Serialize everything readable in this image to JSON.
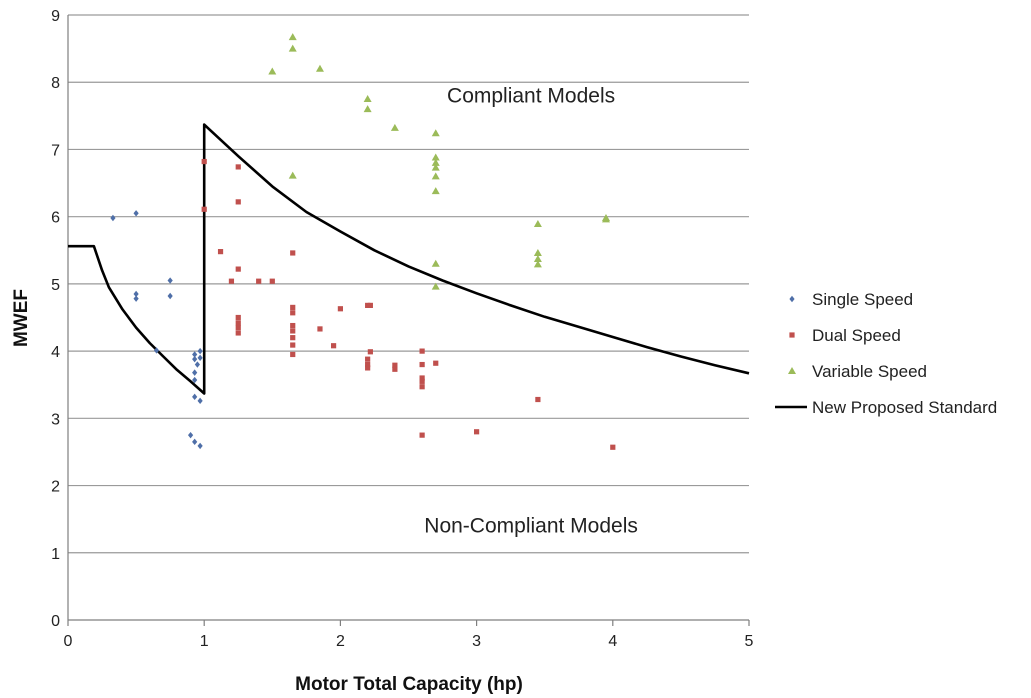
{
  "chart_data": {
    "type": "scatter",
    "title": "",
    "xlabel": "Motor Total Capacity (hp)",
    "ylabel": "MWEF",
    "xlim": [
      0,
      5
    ],
    "ylim": [
      0,
      9
    ],
    "xticks": [
      "0",
      "1",
      "2",
      "3",
      "4",
      "5"
    ],
    "yticks": [
      "0",
      "1",
      "2",
      "3",
      "4",
      "5",
      "6",
      "7",
      "8",
      "9"
    ],
    "grid": "horizontal",
    "legend_position": "right",
    "annotations": [
      {
        "text": "Compliant Models",
        "x": 3.4,
        "y": 7.7
      },
      {
        "text": "Non-Compliant Models",
        "x": 3.4,
        "y": 1.3
      }
    ],
    "series": [
      {
        "name": "Single Speed",
        "marker": "diamond",
        "color": "#4F6FA8",
        "points": [
          [
            0.33,
            5.98
          ],
          [
            0.5,
            6.05
          ],
          [
            0.5,
            4.85
          ],
          [
            0.5,
            4.78
          ],
          [
            0.75,
            5.05
          ],
          [
            0.75,
            4.82
          ],
          [
            0.65,
            4.01
          ],
          [
            0.93,
            3.95
          ],
          [
            0.93,
            3.88
          ],
          [
            0.97,
            4.0
          ],
          [
            0.97,
            3.9
          ],
          [
            0.95,
            3.8
          ],
          [
            0.93,
            3.68
          ],
          [
            0.93,
            3.57
          ],
          [
            0.93,
            3.32
          ],
          [
            0.97,
            3.26
          ],
          [
            0.9,
            2.75
          ],
          [
            0.93,
            2.65
          ],
          [
            0.97,
            2.59
          ]
        ]
      },
      {
        "name": "Dual Speed",
        "marker": "square",
        "color": "#C0504D",
        "points": [
          [
            1.0,
            6.82
          ],
          [
            1.0,
            6.11
          ],
          [
            1.25,
            6.74
          ],
          [
            1.25,
            6.22
          ],
          [
            1.12,
            5.48
          ],
          [
            1.25,
            5.22
          ],
          [
            1.2,
            5.04
          ],
          [
            1.4,
            5.04
          ],
          [
            1.5,
            5.04
          ],
          [
            1.25,
            4.5
          ],
          [
            1.25,
            4.42
          ],
          [
            1.25,
            4.35
          ],
          [
            1.25,
            4.27
          ],
          [
            1.65,
            5.46
          ],
          [
            1.65,
            4.65
          ],
          [
            1.65,
            4.57
          ],
          [
            1.65,
            4.38
          ],
          [
            1.65,
            4.3
          ],
          [
            1.65,
            4.2
          ],
          [
            1.65,
            4.09
          ],
          [
            1.65,
            3.95
          ],
          [
            1.85,
            4.33
          ],
          [
            1.95,
            4.08
          ],
          [
            2.0,
            4.63
          ],
          [
            2.2,
            4.68
          ],
          [
            2.22,
            4.68
          ],
          [
            2.22,
            3.99
          ],
          [
            2.2,
            3.88
          ],
          [
            2.2,
            3.8
          ],
          [
            2.2,
            3.75
          ],
          [
            2.4,
            3.79
          ],
          [
            2.4,
            3.73
          ],
          [
            2.6,
            4.0
          ],
          [
            2.6,
            3.8
          ],
          [
            2.6,
            3.6
          ],
          [
            2.6,
            3.55
          ],
          [
            2.6,
            3.47
          ],
          [
            2.7,
            3.82
          ],
          [
            2.6,
            2.75
          ],
          [
            3.0,
            2.8
          ],
          [
            3.45,
            3.28
          ],
          [
            4.0,
            2.57
          ]
        ]
      },
      {
        "name": "Variable Speed",
        "marker": "triangle",
        "color": "#9BBB59",
        "points": [
          [
            1.65,
            8.67
          ],
          [
            1.65,
            8.5
          ],
          [
            1.5,
            8.16
          ],
          [
            1.85,
            8.2
          ],
          [
            2.2,
            7.75
          ],
          [
            2.2,
            7.6
          ],
          [
            2.4,
            7.32
          ],
          [
            2.7,
            7.24
          ],
          [
            2.7,
            6.88
          ],
          [
            2.7,
            6.8
          ],
          [
            2.7,
            6.73
          ],
          [
            2.7,
            6.6
          ],
          [
            2.7,
            6.38
          ],
          [
            1.65,
            6.61
          ],
          [
            2.7,
            5.3
          ],
          [
            2.7,
            4.96
          ],
          [
            3.45,
            5.89
          ],
          [
            3.45,
            5.46
          ],
          [
            3.45,
            5.37
          ],
          [
            3.45,
            5.29
          ],
          [
            3.95,
            5.98
          ],
          [
            3.95,
            5.96
          ]
        ]
      },
      {
        "name": "New Proposed Standard",
        "type": "line",
        "color": "#000000",
        "points": [
          [
            0,
            5.56
          ],
          [
            0.19,
            5.56
          ],
          [
            0.25,
            5.2
          ],
          [
            0.3,
            4.95
          ],
          [
            0.4,
            4.62
          ],
          [
            0.5,
            4.35
          ],
          [
            0.6,
            4.12
          ],
          [
            0.7,
            3.92
          ],
          [
            0.8,
            3.72
          ],
          [
            0.9,
            3.55
          ],
          [
            1.0,
            3.37
          ],
          [
            1.0,
            7.37
          ],
          [
            1.25,
            6.9
          ],
          [
            1.5,
            6.45
          ],
          [
            1.75,
            6.07
          ],
          [
            2.0,
            5.78
          ],
          [
            2.25,
            5.5
          ],
          [
            2.5,
            5.26
          ],
          [
            2.75,
            5.05
          ],
          [
            3.0,
            4.86
          ],
          [
            3.25,
            4.68
          ],
          [
            3.5,
            4.51
          ],
          [
            3.75,
            4.36
          ],
          [
            4.0,
            4.21
          ],
          [
            4.25,
            4.06
          ],
          [
            4.5,
            3.92
          ],
          [
            4.75,
            3.79
          ],
          [
            5.0,
            3.67
          ]
        ]
      }
    ]
  }
}
